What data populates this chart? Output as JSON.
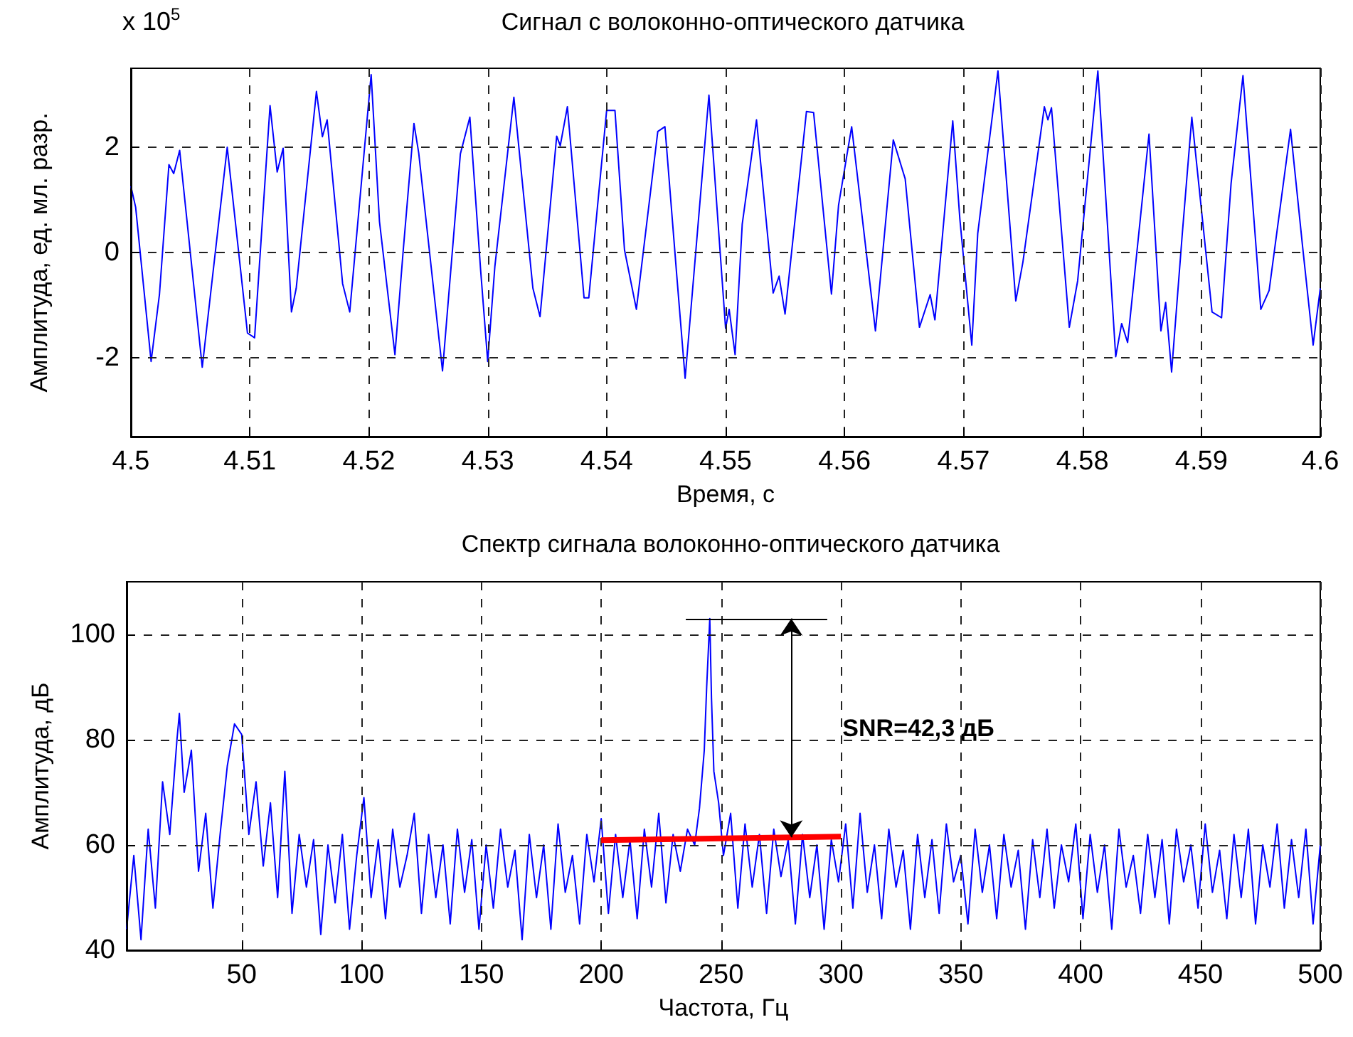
{
  "chart_data": [
    {
      "type": "line",
      "title": "Сигнал с волоконно-оптического датчика",
      "xlabel": "Время, с",
      "ylabel": "Амплитуда, ед. мл. разр.",
      "annotations": [
        "x 10$^{5}$"
      ],
      "xlim": [
        4.5,
        4.6
      ],
      "xticks": [
        4.5,
        4.51,
        4.52,
        4.53,
        4.54,
        4.55,
        4.56,
        4.57,
        4.58,
        4.59,
        4.6
      ],
      "ylim": [
        -3.5,
        3.5
      ],
      "yticks": [
        -2,
        0,
        2
      ],
      "grid": true,
      "series": [
        {
          "color": "#0000ff",
          "x": [
            4.5,
            4.5004,
            4.5017,
            4.5024,
            4.5032,
            4.5036,
            4.5041,
            4.506,
            4.5081,
            4.5098,
            4.5104,
            4.5117,
            4.5123,
            4.5128,
            4.5135,
            4.5139,
            4.5156,
            4.5161,
            4.5165,
            4.5178,
            4.5184,
            4.5202,
            4.5209,
            4.5222,
            4.5229,
            4.5238,
            4.5242,
            4.5262,
            4.5277,
            4.5285,
            4.5294,
            4.53,
            4.5306,
            4.5322,
            4.5338,
            4.5344,
            4.5358,
            4.5361,
            4.5367,
            4.5381,
            4.5385,
            4.54,
            4.5407,
            4.5415,
            4.5425,
            4.5443,
            4.5449,
            4.5459,
            4.5466,
            4.5486,
            4.55,
            4.5503,
            4.5508,
            4.5514,
            4.5526,
            4.554,
            4.5545,
            4.555,
            4.5568,
            4.5574,
            4.5589,
            4.5595,
            4.5606,
            4.5626,
            4.5641,
            4.5651,
            4.5663,
            4.5672,
            4.5676,
            4.5691,
            4.5697,
            4.5707,
            4.5712,
            4.5729,
            4.5744,
            4.575,
            4.5768,
            4.5771,
            4.5774,
            4.5789,
            4.5796,
            4.5813,
            4.5828,
            4.5833,
            4.5838,
            4.5856,
            4.5866,
            4.587,
            4.5875,
            4.5884,
            4.5892,
            4.5909,
            4.5917,
            4.5925,
            4.5935,
            4.595,
            4.5957,
            4.5975,
            4.5985,
            4.5994,
            4.6
          ],
          "values": [
            1.26,
            0.86,
            -2.07,
            -0.8,
            1.67,
            1.5,
            1.94,
            -2.18,
            2.0,
            -1.53,
            -1.62,
            2.79,
            1.53,
            1.98,
            -1.13,
            -0.68,
            3.06,
            2.2,
            2.52,
            -0.59,
            -1.13,
            3.38,
            0.59,
            -1.94,
            0.05,
            2.45,
            1.89,
            -2.25,
            1.87,
            2.57,
            -0.32,
            -2.07,
            -0.27,
            2.95,
            -0.68,
            -1.22,
            2.21,
            2.03,
            2.77,
            -0.86,
            -0.86,
            2.7,
            2.7,
            0.05,
            -1.08,
            2.3,
            2.39,
            -0.45,
            -2.39,
            2.99,
            -1.44,
            -1.08,
            -1.94,
            0.54,
            2.52,
            -0.77,
            -0.45,
            -1.17,
            2.68,
            2.66,
            -0.79,
            0.9,
            2.39,
            -1.49,
            2.14,
            1.4,
            -1.42,
            -0.8,
            -1.28,
            2.5,
            0.63,
            -1.76,
            0.36,
            3.45,
            -0.92,
            -0.18,
            2.77,
            2.52,
            2.75,
            -1.42,
            -0.54,
            3.45,
            -1.98,
            -1.35,
            -1.71,
            2.25,
            -1.49,
            -0.95,
            -2.27,
            0.36,
            2.57,
            -1.13,
            -1.24,
            1.31,
            3.36,
            -1.08,
            -0.72,
            2.34,
            0.14,
            -1.76,
            -0.68
          ]
        }
      ]
    },
    {
      "type": "line",
      "title": "Спектр сигнала волоконно-оптического датчика",
      "xlabel": "Частота, Гц",
      "ylabel": "Амплитуда, дБ",
      "annotations": [
        "SNR=42,3 дБ"
      ],
      "ref_lines": [
        {
          "axis": "y",
          "value": 103,
          "color": "#000000"
        }
      ],
      "xlim": [
        2,
        500
      ],
      "xticks": [
        50,
        100,
        150,
        200,
        250,
        300,
        350,
        400,
        450,
        500
      ],
      "ylim": [
        40,
        110
      ],
      "yticks": [
        40,
        60,
        80,
        100
      ],
      "grid": true,
      "series": [
        {
          "color": "#0000ff",
          "x": [
            2,
            5,
            8,
            11,
            14,
            17,
            20,
            23,
            24,
            26,
            29,
            32,
            35,
            38,
            41,
            44,
            47,
            50,
            53,
            56,
            59,
            62,
            65,
            68,
            71,
            74,
            77,
            80,
            83,
            86,
            89,
            92,
            95,
            98,
            101,
            104,
            107,
            110,
            113,
            116,
            119,
            122,
            125,
            128,
            131,
            134,
            137,
            140,
            143,
            146,
            149,
            152,
            155,
            158,
            161,
            164,
            167,
            170,
            173,
            176,
            179,
            182,
            185,
            188,
            191,
            194,
            197,
            200,
            203,
            206,
            209,
            212,
            215,
            218,
            221,
            224,
            227,
            230,
            233,
            236,
            239,
            241,
            243,
            244,
            245.3,
            246,
            247,
            249,
            251,
            254,
            257,
            260,
            263,
            266,
            269,
            272,
            275,
            278,
            281,
            284,
            287,
            290,
            293,
            296,
            299,
            302,
            305,
            308,
            311,
            314,
            317,
            320,
            323,
            326,
            329,
            332,
            335,
            338,
            341,
            344,
            347,
            350,
            353,
            356,
            359,
            362,
            365,
            368,
            371,
            374,
            377,
            380,
            383,
            386,
            389,
            392,
            395,
            398,
            401,
            404,
            407,
            410,
            413,
            416,
            419,
            422,
            425,
            428,
            431,
            434,
            437,
            440,
            443,
            446,
            449,
            452,
            455,
            458,
            461,
            464,
            467,
            470,
            473,
            476,
            479,
            482,
            485,
            488,
            491,
            494,
            497,
            500
          ],
          "values": [
            44,
            58,
            42,
            63,
            48,
            72,
            62,
            80,
            85,
            70,
            78,
            55,
            66,
            48,
            62,
            75,
            83,
            81,
            62,
            72,
            56,
            68,
            50,
            74,
            47,
            62,
            52,
            61,
            43,
            60,
            49,
            62,
            44,
            58,
            69,
            50,
            61,
            46,
            63,
            52,
            58,
            66,
            47,
            62,
            50,
            60,
            45,
            63,
            51,
            61,
            44,
            60,
            48,
            63,
            52,
            59,
            42,
            62,
            50,
            60,
            44,
            64,
            51,
            58,
            45,
            62,
            53,
            65,
            47,
            62,
            50,
            61,
            46,
            63,
            52,
            66,
            49,
            62,
            55,
            63,
            60,
            67,
            78,
            90,
            103,
            88,
            74,
            68,
            58,
            66,
            48,
            64,
            52,
            62,
            47,
            63,
            54,
            61,
            45,
            62,
            50,
            60,
            44,
            61,
            53,
            64,
            48,
            66,
            51,
            60,
            46,
            63,
            52,
            59,
            44,
            62,
            50,
            61,
            47,
            64,
            53,
            58,
            45,
            63,
            51,
            60,
            46,
            62,
            52,
            59,
            44,
            61,
            50,
            63,
            48,
            60,
            53,
            64,
            46,
            62,
            51,
            60,
            44,
            63,
            52,
            58,
            47,
            62,
            50,
            61,
            45,
            63,
            53,
            60,
            48,
            64,
            51,
            59,
            46,
            62,
            50,
            63,
            45,
            60,
            52,
            64,
            48,
            61,
            50,
            63,
            45,
            60
          ]
        },
        {
          "color": "#ff0000",
          "x": [
            200,
            300
          ],
          "values": [
            60.9,
            61.6
          ]
        }
      ]
    }
  ]
}
